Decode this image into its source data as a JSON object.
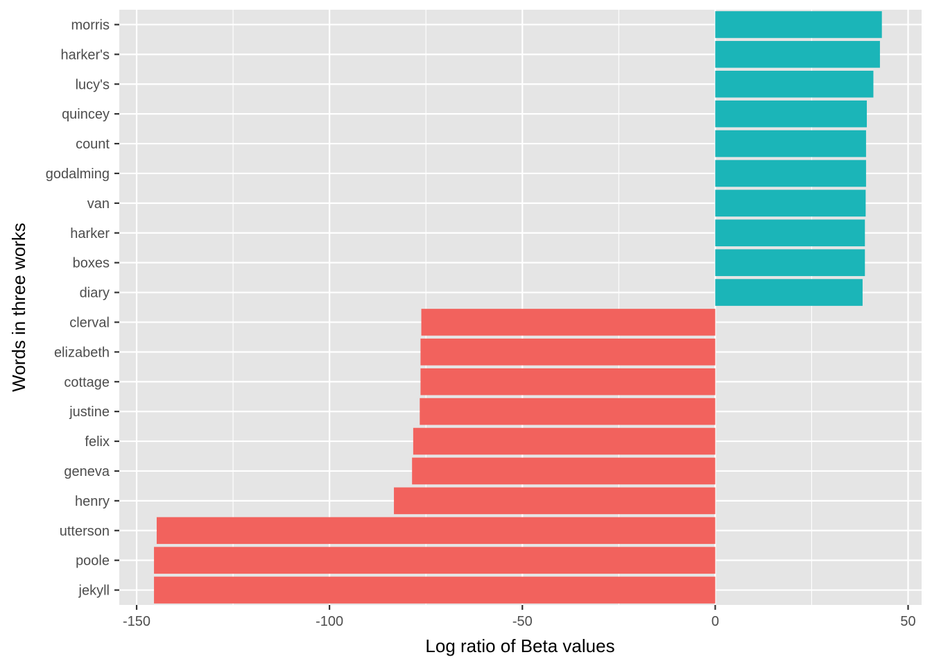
{
  "chart_data": {
    "type": "bar",
    "orientation": "horizontal",
    "xlabel": "Log ratio of Beta values",
    "ylabel": "Words in three works",
    "xlim": [
      -154.5,
      53.5
    ],
    "x_ticks": [
      -150,
      -100,
      -50,
      0,
      50
    ],
    "x_tick_labels": [
      "-150",
      "-100",
      "-50",
      "0",
      "50"
    ],
    "grid": true,
    "legend": "none",
    "categories": [
      "morris",
      "harker's",
      "lucy's",
      "quincey",
      "count",
      "godalming",
      "van",
      "harker",
      "boxes",
      "diary",
      "clerval",
      "elizabeth",
      "cottage",
      "justine",
      "felix",
      "geneva",
      "henry",
      "utterson",
      "poole",
      "jekyll"
    ],
    "values": [
      43.2,
      42.7,
      41.0,
      39.3,
      39.1,
      39.1,
      39.0,
      38.8,
      38.8,
      38.2,
      -76.2,
      -76.4,
      -76.4,
      -76.6,
      -78.3,
      -78.6,
      -83.3,
      -144.8,
      -145.5,
      -145.5
    ],
    "colors": {
      "positive": "#1BB5B8",
      "negative": "#F2625D",
      "panel_background": "#E5E5E5",
      "grid": "#FFFFFF",
      "axis_text": "#4D4D4D",
      "title_text": "#000000"
    }
  }
}
